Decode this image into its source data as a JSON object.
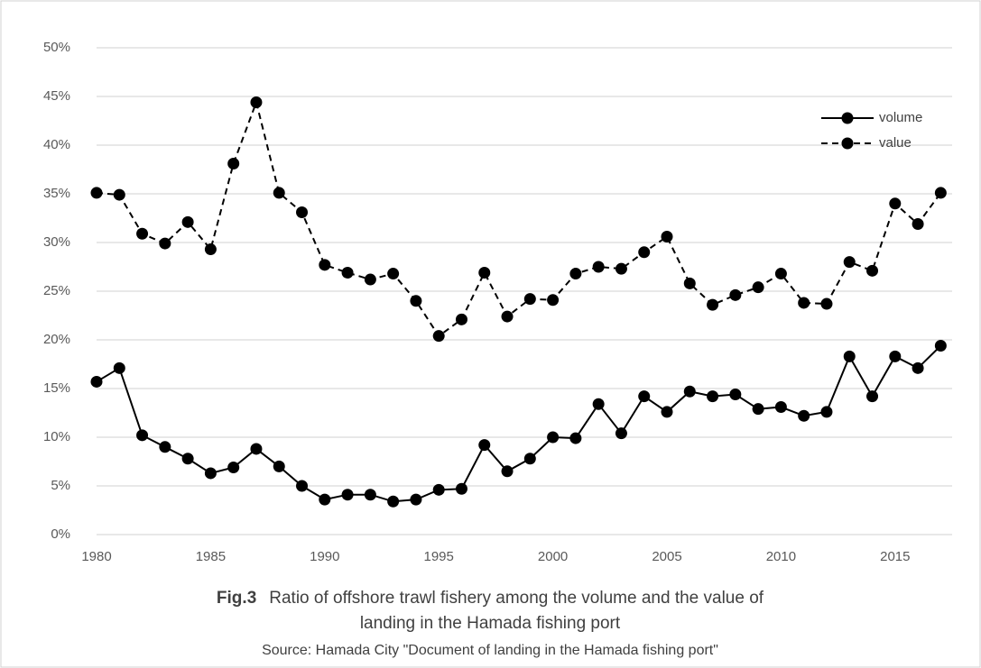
{
  "chart_data": {
    "type": "line",
    "figure_label": "Fig.3",
    "title": [
      "Ratio of offshore trawl  fishery among the volume and the value of",
      "landing in the Hamada fishing port"
    ],
    "source": "Source: Hamada City \"Document of landing in the Hamada fishing port\"",
    "x": [
      1980,
      1981,
      1982,
      1983,
      1984,
      1985,
      1986,
      1987,
      1988,
      1989,
      1990,
      1991,
      1992,
      1993,
      1994,
      1995,
      1996,
      1997,
      1998,
      1999,
      2000,
      2001,
      2002,
      2003,
      2004,
      2005,
      2006,
      2007,
      2008,
      2009,
      2010,
      2011,
      2012,
      2013,
      2014,
      2015,
      2016,
      2017
    ],
    "series": [
      {
        "name": "volume",
        "color": "#000000",
        "linestyle": "solid",
        "values": [
          15.7,
          17.1,
          10.2,
          9.0,
          7.8,
          6.3,
          6.9,
          8.8,
          7.0,
          5.0,
          3.6,
          4.1,
          4.1,
          3.4,
          3.6,
          4.6,
          4.7,
          9.2,
          6.5,
          7.8,
          10.0,
          9.9,
          13.4,
          10.4,
          14.2,
          12.6,
          14.7,
          14.2,
          14.4,
          12.9,
          13.1,
          12.2,
          12.6,
          18.3,
          14.2,
          18.3,
          17.1,
          19.4
        ]
      },
      {
        "name": "value",
        "color": "#000000",
        "linestyle": "dashed",
        "values": [
          35.1,
          34.9,
          30.9,
          29.9,
          32.1,
          29.3,
          38.1,
          44.4,
          35.1,
          33.1,
          27.7,
          26.9,
          26.2,
          26.8,
          24.0,
          20.4,
          22.1,
          26.9,
          22.4,
          24.2,
          24.1,
          26.8,
          27.5,
          27.3,
          29.0,
          30.6,
          25.8,
          23.6,
          24.6,
          25.4,
          26.8,
          23.8,
          23.7,
          28.0,
          27.1,
          34.0,
          31.9,
          35.1
        ]
      }
    ],
    "xlim": [
      1980,
      2017.5
    ],
    "xticks": [
      1980,
      1985,
      1990,
      1995,
      2000,
      2005,
      2010,
      2015
    ],
    "ylim": [
      0,
      50
    ],
    "yticks": [
      {
        "value": 0,
        "label": "0%"
      },
      {
        "value": 5,
        "label": "5%"
      },
      {
        "value": 10,
        "label": "10%"
      },
      {
        "value": 15,
        "label": "15%"
      },
      {
        "value": 20,
        "label": "20%"
      },
      {
        "value": 25,
        "label": "25%"
      },
      {
        "value": 30,
        "label": "30%"
      },
      {
        "value": 35,
        "label": "35%"
      },
      {
        "value": 40,
        "label": "40%"
      },
      {
        "value": 45,
        "label": "45%"
      },
      {
        "value": 50,
        "label": "50%"
      }
    ],
    "grid": true,
    "legend": "upper right"
  }
}
